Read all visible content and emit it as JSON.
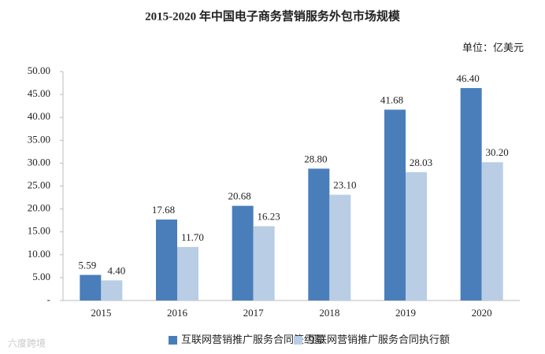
{
  "chart_data": {
    "type": "bar",
    "title": "2015-2020 年中国电子商务营销服务外包市场规模",
    "unit": "单位：亿美元",
    "watermark": "六度跨境",
    "categories": [
      "2015",
      "2016",
      "2017",
      "2018",
      "2019",
      "2020"
    ],
    "series": [
      {
        "name": "互联网营销推广服务合同签约额",
        "color": "#4a7ebb",
        "values": [
          5.59,
          17.68,
          20.68,
          28.8,
          41.68,
          46.4
        ],
        "value_labels": [
          "5.59",
          "17.68",
          "20.68",
          "28.80",
          "41.68",
          "46.40"
        ]
      },
      {
        "name": "互联网营销推广服务合同执行额",
        "color": "#b9cde5",
        "values": [
          4.4,
          11.7,
          16.23,
          23.1,
          28.03,
          30.2
        ],
        "value_labels": [
          "4.40",
          "11.70",
          "16.23",
          "23.10",
          "28.03",
          "30.20"
        ]
      }
    ],
    "ylim": [
      0,
      50
    ],
    "yticks": [
      {
        "value": 0,
        "label": "-"
      },
      {
        "value": 5,
        "label": "5.00"
      },
      {
        "value": 10,
        "label": "10.00"
      },
      {
        "value": 15,
        "label": "15.00"
      },
      {
        "value": 20,
        "label": "20.00"
      },
      {
        "value": 25,
        "label": "25.00"
      },
      {
        "value": 30,
        "label": "30.00"
      },
      {
        "value": 35,
        "label": "35.00"
      },
      {
        "value": 40,
        "label": "40.00"
      },
      {
        "value": 45,
        "label": "45.00"
      },
      {
        "value": 50,
        "label": "50.00"
      }
    ],
    "grid": false
  }
}
